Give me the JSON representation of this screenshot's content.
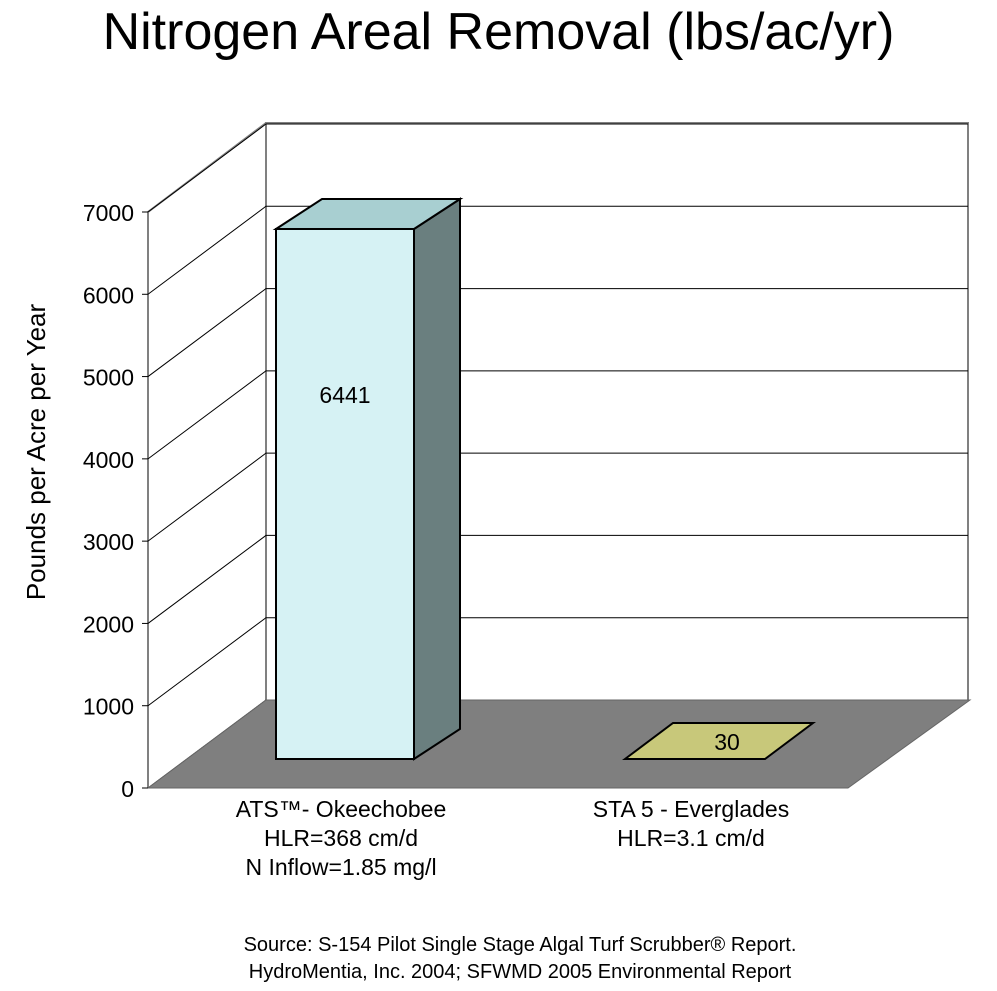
{
  "chart_data": {
    "type": "bar",
    "title": "Nitrogen Areal Removal (lbs/ac/yr)",
    "ylabel": "Pounds per Acre per Year",
    "xlabel": "",
    "ylim": [
      0,
      7000
    ],
    "yticks": [
      0,
      1000,
      2000,
      3000,
      4000,
      5000,
      6000,
      7000
    ],
    "grid": true,
    "style": "3d",
    "categories": [
      [
        "ATS™- Okeechobee",
        "HLR=368 cm/d",
        "N Inflow=1.85 mg/l"
      ],
      [
        "STA 5 - Everglades",
        "HLR=3.1 cm/d"
      ]
    ],
    "values": [
      6441,
      30
    ],
    "data_labels": [
      "6441",
      "30"
    ],
    "colors": {
      "bar1_front": "#d6f2f4",
      "bar1_side": "#6a7f7f",
      "bar1_top": "#a8cfd1",
      "bar2": "#c8c87a",
      "floor": "#7f7f7f",
      "gridline": "#000000",
      "wall": "#808080"
    }
  },
  "source": [
    "Source:  S-154 Pilot Single Stage Algal Turf Scrubber® Report.",
    "HydroMentia, Inc.  2004; SFWMD 2005 Environmental Report"
  ]
}
